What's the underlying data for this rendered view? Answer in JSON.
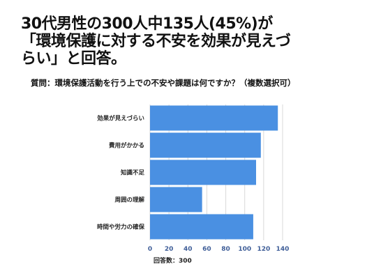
{
  "title_lines": [
    "30代男性の300人中135人(45%)が",
    "「環境保護に対する不安を効果が見えづ",
    "らい」と回答。"
  ],
  "question": "質問：環境保護活動を行う上での不安や課題は何ですか？（複数選択可）",
  "colors": {
    "bar": "#4a90e2",
    "grid": "#d9d9d9",
    "tick": "#3f5e98"
  },
  "chart_data": {
    "type": "bar",
    "orientation": "horizontal",
    "categories": [
      "効果が見えづらい",
      "費用がかかる",
      "知識不足",
      "周囲の理解",
      "時間や労力の確保"
    ],
    "values": [
      135,
      117,
      112,
      55,
      109
    ],
    "xlim": [
      0,
      140
    ],
    "xticks": [
      0,
      20,
      40,
      60,
      80,
      100,
      120,
      140
    ],
    "xlabel": "回答数：300",
    "ylabel": "",
    "grid": true,
    "legend": "none"
  }
}
